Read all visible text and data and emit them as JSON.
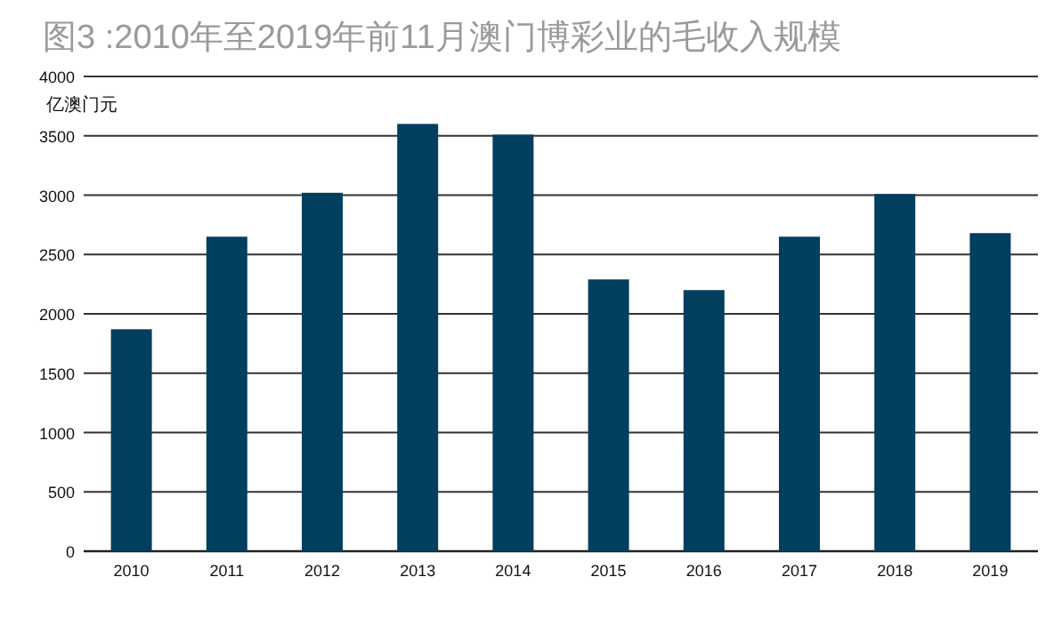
{
  "chart_data": {
    "type": "bar",
    "title": "图3 :2010年至2019年前11月澳门博彩业的毛收入规模",
    "ylabel": "亿澳门元",
    "categories": [
      "2010",
      "2011",
      "2012",
      "2013",
      "2014",
      "2015",
      "2016",
      "2017",
      "2018",
      "2019"
    ],
    "values": [
      1870,
      2650,
      3020,
      3600,
      3510,
      2290,
      2200,
      2650,
      3010,
      2680
    ],
    "color": "#023f5f",
    "ylim": [
      0,
      4000
    ],
    "yticks": [
      0,
      500,
      1000,
      1500,
      2000,
      2500,
      3000,
      3500,
      4000
    ],
    "grid": "y"
  }
}
